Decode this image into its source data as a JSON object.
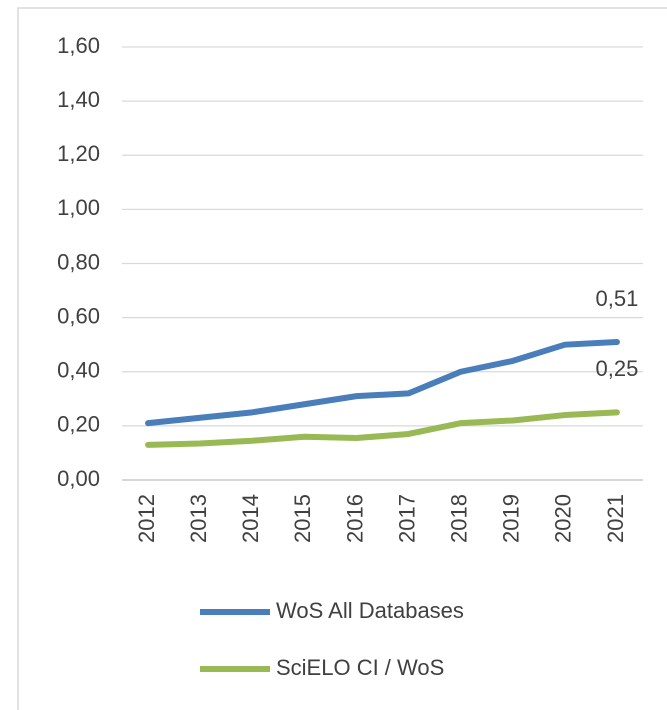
{
  "chart_data": {
    "type": "line",
    "categories": [
      "2012",
      "2013",
      "2014",
      "2015",
      "2016",
      "2017",
      "2018",
      "2019",
      "2020",
      "2021"
    ],
    "series": [
      {
        "name": "WoS All Databases",
        "color": "#4a7ebb",
        "values": [
          0.21,
          0.23,
          0.25,
          0.28,
          0.31,
          0.32,
          0.4,
          0.44,
          0.5,
          0.51
        ],
        "value_labels": [
          null,
          null,
          null,
          null,
          null,
          null,
          null,
          null,
          null,
          "0,51"
        ]
      },
      {
        "name": "SciELO CI / WoS",
        "color": "#98b954",
        "values": [
          0.13,
          0.135,
          0.145,
          0.16,
          0.155,
          0.17,
          0.21,
          0.22,
          0.24,
          0.25
        ],
        "value_labels": [
          null,
          null,
          null,
          null,
          null,
          null,
          null,
          null,
          null,
          "0,25"
        ]
      }
    ],
    "ylim": [
      0,
      1.6
    ],
    "yticks": [
      {
        "value": 0,
        "label": "0,00"
      },
      {
        "value": 0.2,
        "label": "0,20"
      },
      {
        "value": 0.4,
        "label": "0,40"
      },
      {
        "value": 0.6,
        "label": "0,60"
      },
      {
        "value": 0.8,
        "label": "0,80"
      },
      {
        "value": 1.0,
        "label": "1,00"
      },
      {
        "value": 1.2,
        "label": "1,20"
      },
      {
        "value": 1.4,
        "label": "1,40"
      },
      {
        "value": 1.6,
        "label": "1,60"
      }
    ],
    "grid": true,
    "legend": "bottom"
  }
}
